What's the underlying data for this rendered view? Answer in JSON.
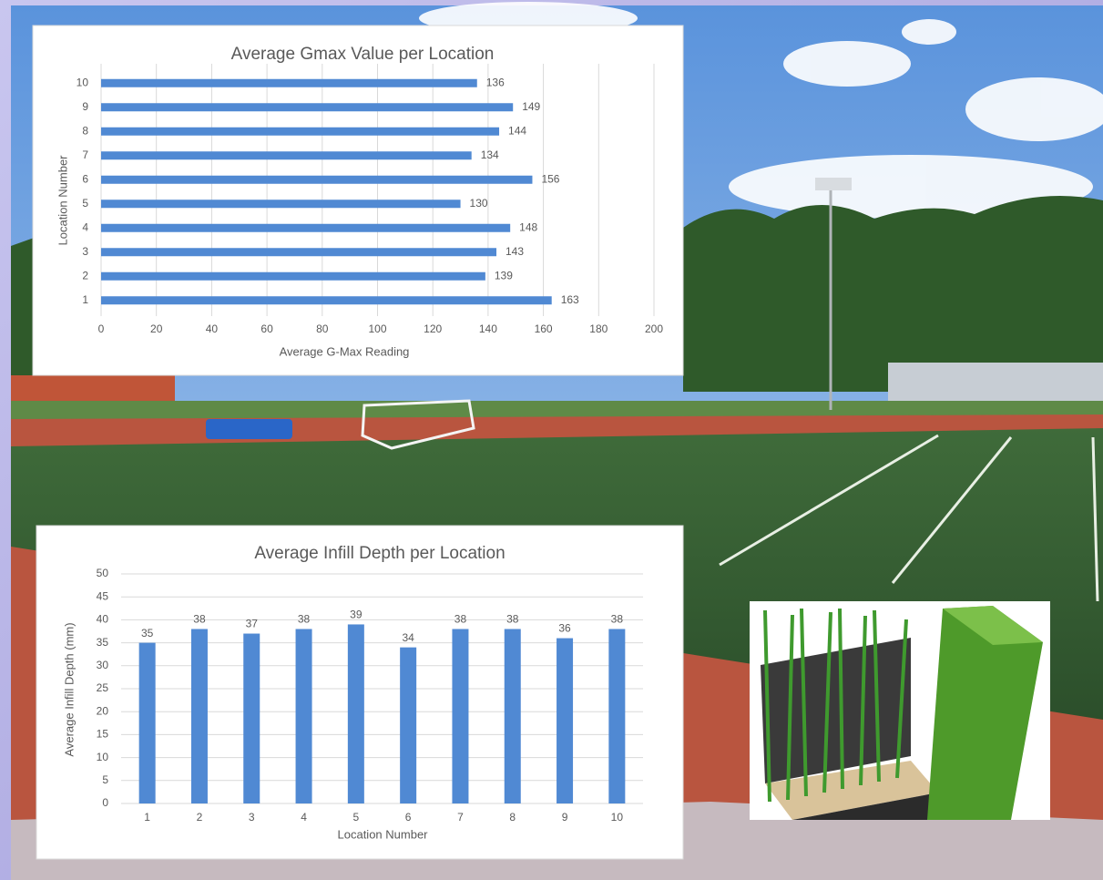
{
  "chart_data": [
    {
      "type": "barh",
      "title": "Average Gmax Value per Location",
      "categories": [
        "1",
        "2",
        "3",
        "4",
        "5",
        "6",
        "7",
        "8",
        "9",
        "10"
      ],
      "values": [
        163,
        139,
        143,
        148,
        130,
        156,
        134,
        144,
        149,
        136
      ],
      "color": "#5089d3",
      "xlabel": "Average G-Max Reading",
      "ylabel": "Location Number",
      "xlim": [
        0,
        200
      ],
      "xticks": [
        0,
        20,
        40,
        60,
        80,
        100,
        120,
        140,
        160,
        180,
        200
      ],
      "grid": true
    },
    {
      "type": "bar",
      "title": "Average Infill Depth per Location",
      "categories": [
        "1",
        "2",
        "3",
        "4",
        "5",
        "6",
        "7",
        "8",
        "9",
        "10"
      ],
      "values": [
        35,
        38,
        37,
        38,
        39,
        34,
        38,
        38,
        36,
        38
      ],
      "color": "#5089d3",
      "xlabel": "Location Number",
      "ylabel": "Average Infill Depth (mm)",
      "ylim": [
        0,
        50
      ],
      "yticks": [
        0,
        5,
        10,
        15,
        20,
        25,
        30,
        35,
        40,
        45,
        50
      ],
      "grid": true
    }
  ]
}
